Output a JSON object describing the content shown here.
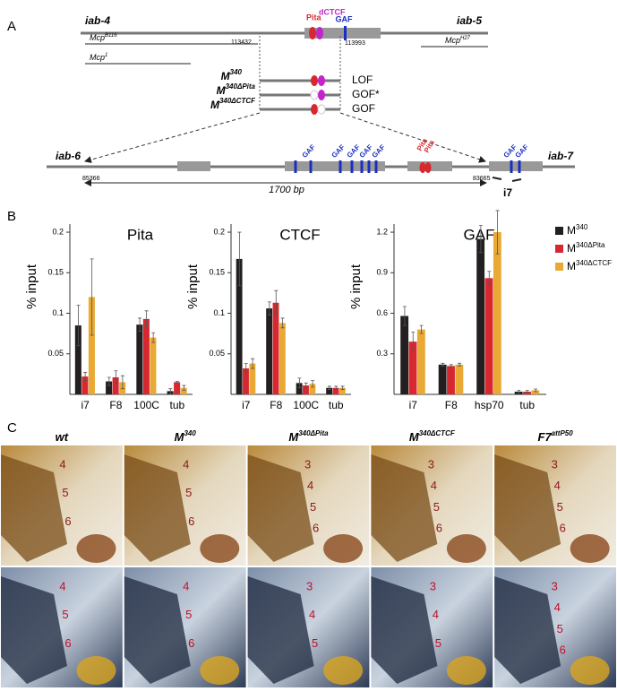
{
  "panel_labels": [
    "A",
    "B",
    "C"
  ],
  "panel_a": {
    "left_region": "iab-4",
    "right_region": "iab-5",
    "sites": [
      "Pita",
      "dCTCF",
      "GAF"
    ],
    "coords": [
      "113432",
      "113993"
    ],
    "alleles": [
      {
        "name": "Mcp",
        "sup": "B116"
      },
      {
        "name": "Mcp",
        "sup": "1"
      },
      {
        "name": "Mcp",
        "sup": "H27"
      }
    ],
    "constructs": [
      {
        "name": "M",
        "sup": "340",
        "phenotype": "LOF"
      },
      {
        "name": "M",
        "sup": "340ΔPita",
        "phenotype": "GOF*"
      },
      {
        "name": "M",
        "sup": "340ΔCTCF",
        "phenotype": "GOF"
      }
    ],
    "zoom": {
      "left_region": "iab-6",
      "right_region": "iab-7",
      "gaf_label": "GAF",
      "pita_label": "Pita",
      "start": "85366",
      "end": "83665",
      "length": "1700 bp",
      "primer": "i7"
    }
  },
  "chart_data": [
    {
      "type": "bar",
      "title": "Pita",
      "y_label": "% input",
      "categories": [
        "i7",
        "F8",
        "100C",
        "tub"
      ],
      "ylim": [
        0,
        0.21
      ],
      "yticks": [
        0.05,
        0.1,
        0.15,
        0.2
      ],
      "series": [
        {
          "name": "M340",
          "color": "#231f20",
          "values": [
            0.085,
            0.016,
            0.086,
            0.004
          ],
          "errors": [
            0.025,
            0.005,
            0.008,
            0.003
          ]
        },
        {
          "name": "M340ΔPita",
          "color": "#d7282f",
          "values": [
            0.022,
            0.021,
            0.093,
            0.015
          ],
          "errors": [
            0.005,
            0.008,
            0.01,
            0.001
          ]
        },
        {
          "name": "M340ΔCTCF",
          "color": "#e8a935",
          "values": [
            0.12,
            0.015,
            0.07,
            0.008
          ],
          "errors": [
            0.047,
            0.008,
            0.006,
            0.003
          ]
        }
      ]
    },
    {
      "type": "bar",
      "title": "CTCF",
      "y_label": "% input",
      "categories": [
        "i7",
        "F8",
        "100C",
        "tub"
      ],
      "ylim": [
        0,
        0.21
      ],
      "yticks": [
        0.05,
        0.1,
        0.15,
        0.2
      ],
      "series": [
        {
          "name": "M340",
          "color": "#231f20",
          "values": [
            0.167,
            0.106,
            0.014,
            0.008
          ],
          "errors": [
            0.033,
            0.008,
            0.006,
            0.002
          ]
        },
        {
          "name": "M340ΔPita",
          "color": "#d7282f",
          "values": [
            0.032,
            0.113,
            0.011,
            0.008
          ],
          "errors": [
            0.006,
            0.015,
            0.003,
            0.002
          ]
        },
        {
          "name": "M340ΔCTCF",
          "color": "#e8a935",
          "values": [
            0.038,
            0.088,
            0.013,
            0.008
          ],
          "errors": [
            0.006,
            0.006,
            0.004,
            0.002
          ]
        }
      ]
    },
    {
      "type": "bar",
      "title": "GAF",
      "y_label": "% input",
      "categories": [
        "i7",
        "F8",
        "hsp70",
        "tub"
      ],
      "ylim": [
        0,
        1.26
      ],
      "yticks": [
        0.3,
        0.6,
        0.9,
        1.2
      ],
      "legend": "right",
      "series": [
        {
          "name": "M340",
          "color": "#231f20",
          "values": [
            0.58,
            0.22,
            1.15,
            0.02
          ],
          "errors": [
            0.07,
            0.01,
            0.1,
            0.01
          ]
        },
        {
          "name": "M340ΔPita",
          "color": "#d7282f",
          "values": [
            0.39,
            0.21,
            0.86,
            0.02
          ],
          "errors": [
            0.07,
            0.01,
            0.05,
            0.01
          ]
        },
        {
          "name": "M340ΔCTCF",
          "color": "#e8a935",
          "values": [
            0.48,
            0.22,
            1.2,
            0.03
          ],
          "errors": [
            0.03,
            0.01,
            0.16,
            0.01
          ]
        }
      ]
    }
  ],
  "panel_c": {
    "genotypes": [
      {
        "name": "wt",
        "sup": ""
      },
      {
        "name": "M",
        "sup": "340"
      },
      {
        "name": "M",
        "sup": "340ΔPita"
      },
      {
        "name": "M",
        "sup": "340ΔCTCF"
      },
      {
        "name": "F7",
        "sup": "attP50"
      }
    ],
    "rows": [
      [
        [
          "4",
          "5",
          "6"
        ],
        [
          "4",
          "5",
          "6"
        ],
        [
          "3",
          "4",
          "5",
          "6"
        ],
        [
          "3",
          "4",
          "5",
          "6"
        ],
        [
          "3",
          "4",
          "5",
          "6"
        ]
      ],
      [
        [
          "4",
          "5",
          "6"
        ],
        [
          "4",
          "5",
          "6"
        ],
        [
          "3",
          "4",
          "5"
        ],
        [
          "3",
          "4",
          "5"
        ],
        [
          "3",
          "4",
          "5",
          "6"
        ]
      ]
    ]
  }
}
